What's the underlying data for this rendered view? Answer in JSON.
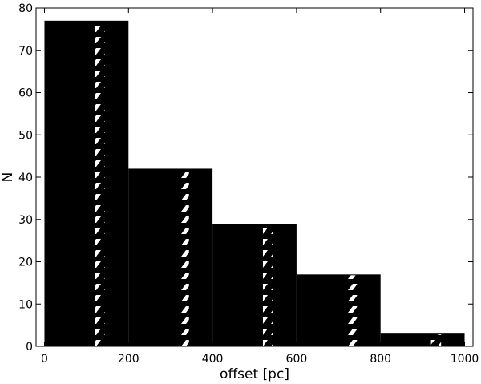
{
  "chart_data": {
    "type": "bar",
    "bins": [
      {
        "start": 0,
        "end": 200,
        "count": 77
      },
      {
        "start": 200,
        "end": 400,
        "count": 42
      },
      {
        "start": 400,
        "end": 600,
        "count": 29
      },
      {
        "start": 600,
        "end": 800,
        "count": 17
      },
      {
        "start": 800,
        "end": 1000,
        "count": 3
      }
    ],
    "xlabel": "offset [pc]",
    "ylabel": "N",
    "xlim": [
      -20,
      1020
    ],
    "ylim": [
      0,
      80
    ],
    "xticks": [
      0,
      200,
      400,
      600,
      800,
      1000
    ],
    "yticks": [
      0,
      10,
      20,
      30,
      40,
      50,
      60,
      70,
      80
    ],
    "grid": false,
    "bar_fill_color": "#000000",
    "hatch_color": "#ffffff"
  }
}
